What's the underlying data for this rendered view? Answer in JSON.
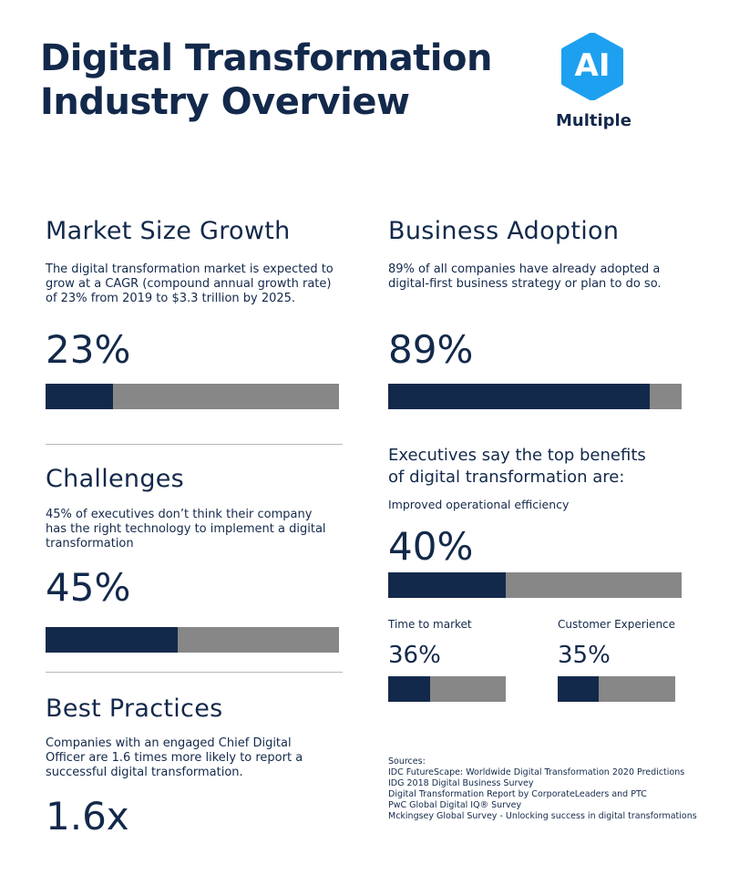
{
  "header": {
    "title_line1": "Digital Transformation",
    "title_line2": "Industry Overview",
    "logo": {
      "ai_text": "AI",
      "name": "Multiple",
      "color": "#1ea0f0"
    }
  },
  "market_size": {
    "heading": "Market Size Growth",
    "description": "The digital transformation market is expected to grow at a CAGR (compound annual growth rate) of 23% from 2019 to $3.3 trillion by 2025.",
    "value_text": "23%",
    "fill": 0.23
  },
  "business_adoption": {
    "heading": "Business Adoption",
    "description": "89% of all companies have already adopted a digital-first business strategy or plan to do so.",
    "value_text": "89%",
    "fill": 0.89
  },
  "challenges": {
    "heading": "Challenges",
    "description": "45% of executives don’t think their company has the right technology to implement a digital transformation",
    "value_text": "45%",
    "fill": 0.45
  },
  "best_practices": {
    "heading": "Best Practices",
    "description": "Companies with an engaged Chief Digital Officer are 1.6 times more likely to report a successful digital transformation.",
    "value_text": "1.6x"
  },
  "benefits": {
    "heading_line1": "Executives say the top benefits",
    "heading_line2": "of digital transformation are:",
    "efficiency": {
      "label": "Improved operational efficiency",
      "value_text": "40%",
      "fill": 0.4
    },
    "time_to_market": {
      "label": "Time to market",
      "value_text": "36%",
      "fill": 0.36
    },
    "customer_experience": {
      "label": "Customer Experience",
      "value_text": "35%",
      "fill": 0.35
    }
  },
  "sources": {
    "label": "Sources:",
    "items": [
      "IDC FutureScape: Worldwide Digital Transformation 2020 Predictions",
      "IDG 2018 Digital Business Survey",
      "Digital Transformation Report by CorporateLeaders and PTC",
      "PwC Global Digital IQ® Survey",
      "Mckingsey Global Survey - Unlocking success in digital transformations"
    ]
  },
  "colors": {
    "navy": "#13294b",
    "gray_bar": "#878787",
    "logo_blue": "#1ea0f0"
  }
}
